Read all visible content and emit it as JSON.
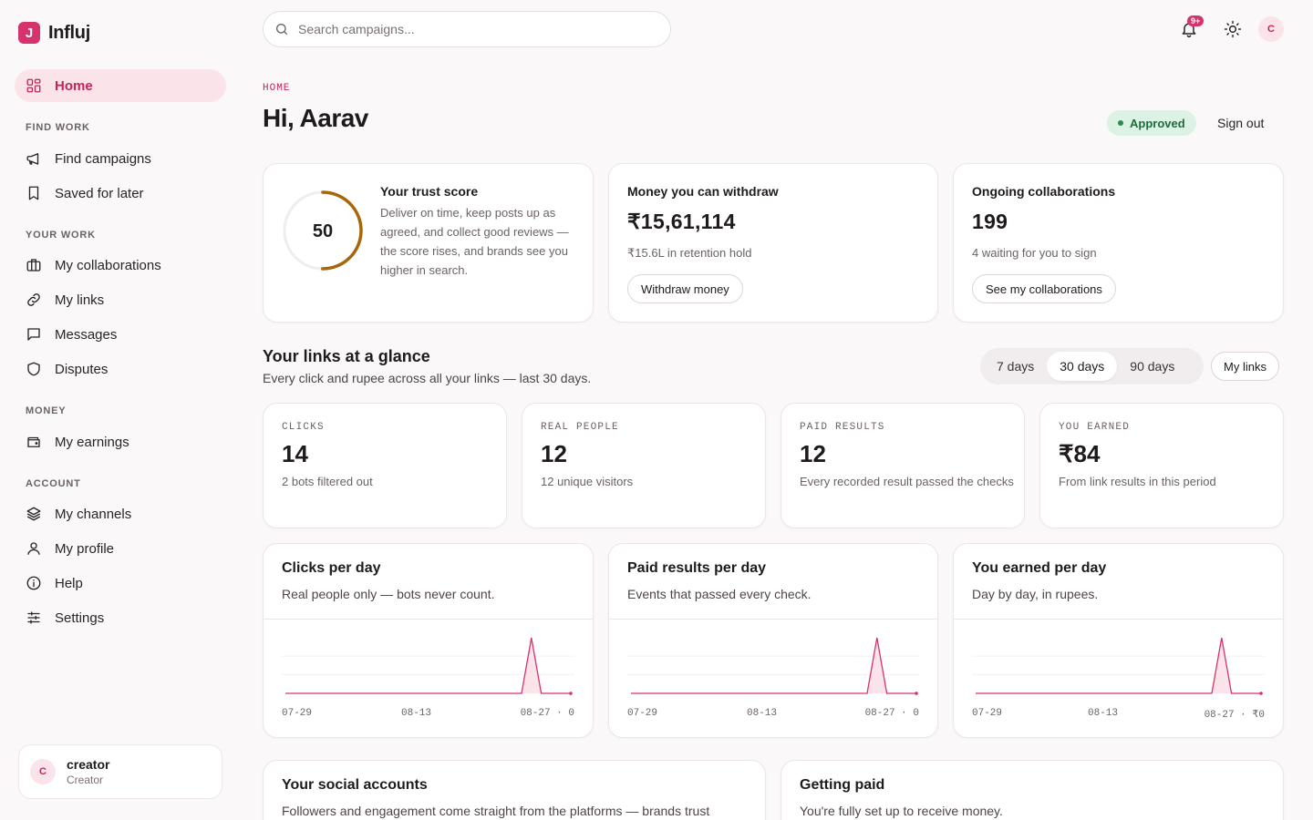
{
  "brand": {
    "logo_letter": "J",
    "name": "Influj"
  },
  "sidebar": {
    "home": "Home",
    "sections": {
      "find_work": "FIND WORK",
      "your_work": "YOUR WORK",
      "money": "MONEY",
      "account": "ACCOUNT"
    },
    "items": {
      "find_campaigns": "Find campaigns",
      "saved": "Saved for later",
      "collaborations": "My collaborations",
      "links": "My links",
      "messages": "Messages",
      "disputes": "Disputes",
      "earnings": "My earnings",
      "channels": "My channels",
      "profile": "My profile",
      "help": "Help",
      "settings": "Settings"
    },
    "user": {
      "initial": "C",
      "name": "creator",
      "role": "Creator"
    }
  },
  "topbar": {
    "search_placeholder": "Search campaigns...",
    "notif_count": "9+",
    "avatar_initial": "C"
  },
  "header": {
    "breadcrumb": "HOME",
    "greeting": "Hi, Aarav",
    "status": "Approved",
    "sign_out": "Sign out"
  },
  "trust": {
    "score": "50",
    "score_fraction": 0.5,
    "title": "Your trust score",
    "description": "Deliver on time, keep posts up as agreed, and collect good reviews — the score rises, and brands see you higher in search."
  },
  "withdraw": {
    "title": "Money you can withdraw",
    "amount": "₹15,61,114",
    "sub": "₹15.6L in retention hold",
    "button": "Withdraw money"
  },
  "collabs": {
    "title": "Ongoing collaborations",
    "count": "199",
    "sub": "4 waiting for you to sign",
    "button": "See my collaborations"
  },
  "links_section": {
    "title": "Your links at a glance",
    "subtitle": "Every click and rupee across all your links — last 30 days.",
    "ranges": [
      "7 days",
      "30 days",
      "90 days"
    ],
    "active_range": "30 days",
    "my_links": "My links"
  },
  "stats": [
    {
      "label": "CLICKS",
      "value": "14",
      "sub": "2 bots filtered out"
    },
    {
      "label": "REAL PEOPLE",
      "value": "12",
      "sub": "12 unique visitors"
    },
    {
      "label": "PAID RESULTS",
      "value": "12",
      "sub": "Every recorded result passed the checks"
    },
    {
      "label": "YOU EARNED",
      "value": "₹84",
      "sub": "From link results in this period"
    }
  ],
  "charts": [
    {
      "title": "Clicks per day",
      "subtitle": "Real people only — bots never count.",
      "ticks": [
        "07-29",
        "08-13",
        "08-27 · 0"
      ]
    },
    {
      "title": "Paid results per day",
      "subtitle": "Events that passed every check.",
      "ticks": [
        "07-29",
        "08-13",
        "08-27 · 0"
      ]
    },
    {
      "title": "You earned per day",
      "subtitle": "Day by day, in rupees.",
      "ticks": [
        "07-29",
        "08-13",
        "08-27 · ₹0"
      ]
    }
  ],
  "chart_data": [
    {
      "type": "area",
      "title": "Clicks per day",
      "x_start": "07-29",
      "x_end": "08-27",
      "values": [
        0,
        0,
        0,
        0,
        0,
        0,
        0,
        0,
        0,
        0,
        0,
        0,
        0,
        0,
        0,
        0,
        0,
        0,
        0,
        0,
        0,
        0,
        0,
        0,
        0,
        14,
        0,
        0,
        0,
        0
      ]
    },
    {
      "type": "area",
      "title": "Paid results per day",
      "x_start": "07-29",
      "x_end": "08-27",
      "values": [
        0,
        0,
        0,
        0,
        0,
        0,
        0,
        0,
        0,
        0,
        0,
        0,
        0,
        0,
        0,
        0,
        0,
        0,
        0,
        0,
        0,
        0,
        0,
        0,
        0,
        12,
        0,
        0,
        0,
        0
      ]
    },
    {
      "type": "area",
      "title": "You earned per day",
      "x_start": "07-29",
      "x_end": "08-27",
      "values": [
        0,
        0,
        0,
        0,
        0,
        0,
        0,
        0,
        0,
        0,
        0,
        0,
        0,
        0,
        0,
        0,
        0,
        0,
        0,
        0,
        0,
        0,
        0,
        0,
        0,
        84,
        0,
        0,
        0,
        0
      ]
    }
  ],
  "social": {
    "title": "Your social accounts",
    "subtitle": "Followers and engagement come straight from the platforms — brands trust"
  },
  "getting_paid": {
    "title": "Getting paid",
    "subtitle": "You're fully set up to receive money."
  },
  "colors": {
    "accent": "#d6336c",
    "accent_soft": "#fbe3ea",
    "trust_ring": "#a8660c",
    "approved_bg": "#dcf2e4"
  }
}
